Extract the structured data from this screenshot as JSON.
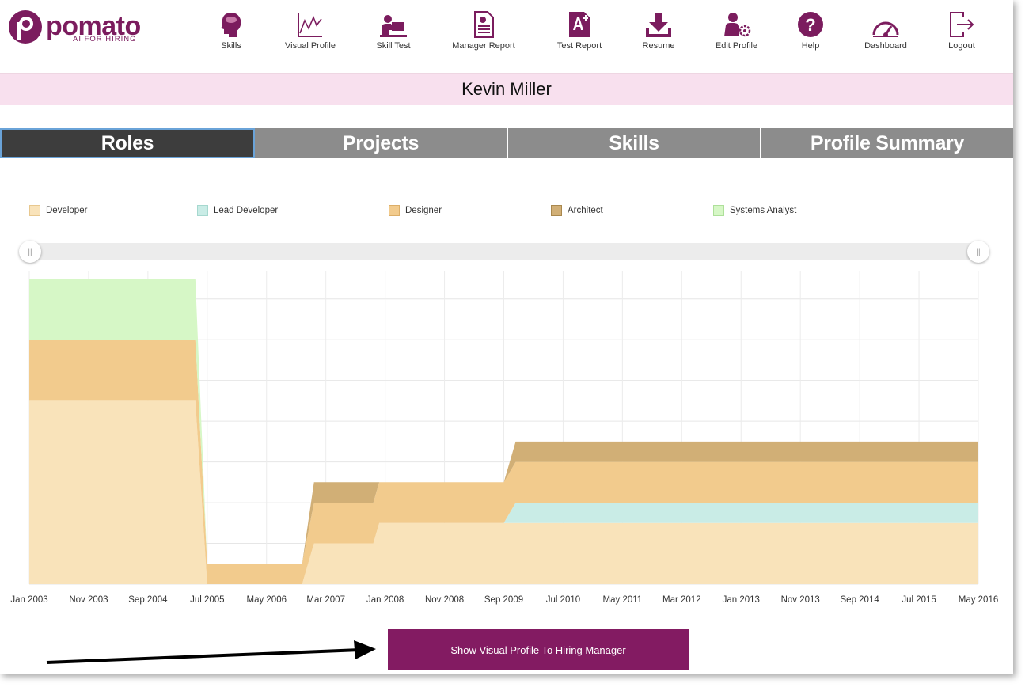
{
  "app": {
    "brand": "pomato",
    "tagline": "AI FOR HIRING",
    "accent": "#831b62"
  },
  "nav": [
    {
      "label": "Skills",
      "icon": "brain-head-icon"
    },
    {
      "label": "Visual Profile",
      "icon": "line-chart-icon"
    },
    {
      "label": "Skill Test",
      "icon": "person-laptop-icon"
    },
    {
      "label": "Manager Report",
      "icon": "document-icon"
    },
    {
      "label": "Test Report",
      "icon": "grade-a-plus-icon"
    },
    {
      "label": "Resume",
      "icon": "download-icon"
    },
    {
      "label": "Edit Profile",
      "icon": "user-gear-icon"
    },
    {
      "label": "Help",
      "icon": "question-circle-icon"
    },
    {
      "label": "Dashboard",
      "icon": "gauge-icon"
    },
    {
      "label": "Logout",
      "icon": "logout-icon"
    }
  ],
  "profile": {
    "name": "Kevin Miller"
  },
  "tabs": [
    {
      "label": "Roles",
      "active": true
    },
    {
      "label": "Projects",
      "active": false
    },
    {
      "label": "Skills",
      "active": false
    },
    {
      "label": "Profile Summary",
      "active": false
    }
  ],
  "chart_data": {
    "type": "area",
    "stacked": true,
    "legend_position": "top",
    "grid": true,
    "x_tick_labels": [
      "Jan 2003",
      "Nov 2003",
      "Sep 2004",
      "Jul 2005",
      "May 2006",
      "Mar 2007",
      "Jan 2008",
      "Nov 2008",
      "Sep 2009",
      "Jul 2010",
      "May 2011",
      "Mar 2012",
      "Jan 2013",
      "Nov 2013",
      "Sep 2014",
      "Jul 2015",
      "May 2016"
    ],
    "x_range": [
      "2003-01",
      "2016-05"
    ],
    "y_range": [
      0,
      7.5
    ],
    "x": [
      "2003-01",
      "2005-05",
      "2005-07",
      "2006-11",
      "2007-01",
      "2007-11",
      "2007-12",
      "2008-01",
      "2009-09",
      "2009-11",
      "2016-05"
    ],
    "series": [
      {
        "name": "Developer",
        "color": "#f9e3ba",
        "values": [
          4.5,
          4.5,
          0,
          0,
          1,
          1,
          1.5,
          1.5,
          1.5,
          1.5,
          1.5
        ]
      },
      {
        "name": "Lead Developer",
        "color": "#c9ece6",
        "values": [
          0,
          0,
          0,
          0,
          0,
          0,
          0,
          0,
          0,
          0.5,
          0.5
        ]
      },
      {
        "name": "Designer",
        "color": "#f2cb8d",
        "values": [
          1.5,
          1.5,
          0.5,
          0.5,
          1,
          1,
          1,
          1,
          1,
          1,
          1
        ]
      },
      {
        "name": "Architect",
        "color": "#d1af76",
        "values": [
          0,
          0,
          0,
          0,
          0.5,
          0.5,
          0,
          0,
          0,
          0.5,
          0.5
        ]
      },
      {
        "name": "Systems Analyst",
        "color": "#d6f7c6",
        "values": [
          1.5,
          1.5,
          0,
          0,
          0,
          0,
          0,
          0,
          0,
          0,
          0
        ]
      }
    ]
  },
  "slider": {
    "left_handle_label": "||",
    "right_handle_label": "||"
  },
  "cta": {
    "label": "Show Visual Profile To Hiring Manager"
  }
}
